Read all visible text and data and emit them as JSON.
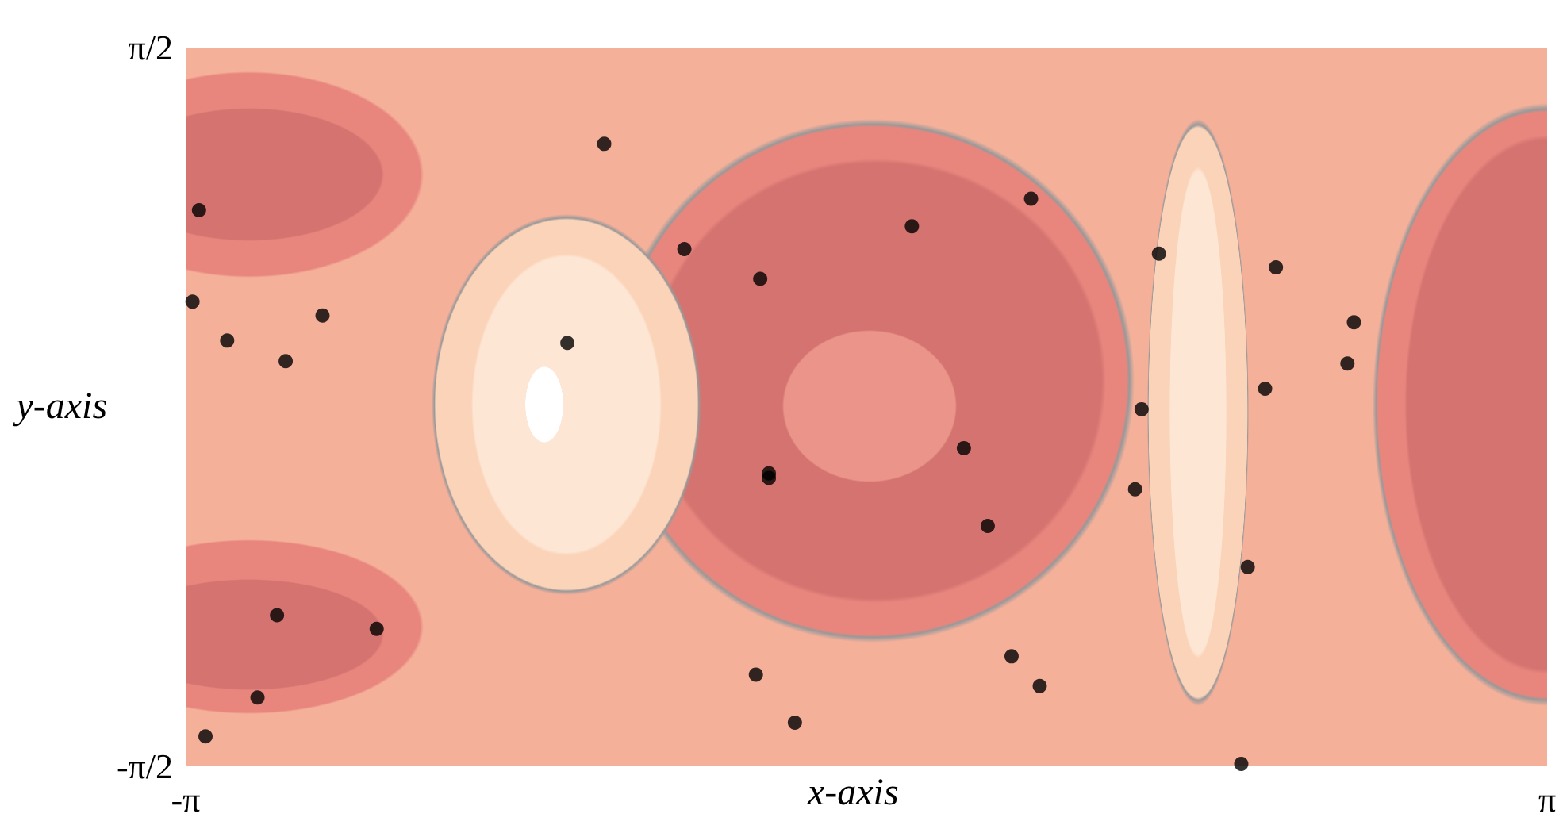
{
  "chart_data": {
    "type": "scatter",
    "xlabel": "x-axis",
    "ylabel": "y-axis",
    "xlim": [
      -3.14159,
      3.14159
    ],
    "ylim": [
      -1.5708,
      1.5708
    ],
    "xticks": [
      {
        "value": -3.14159,
        "label": "-π"
      },
      {
        "value": 3.14159,
        "label": "π"
      }
    ],
    "yticks": [
      {
        "value": -1.5708,
        "label": "-π/2"
      },
      {
        "value": 1.5708,
        "label": "π/2"
      }
    ],
    "marker": "circle",
    "grid": false,
    "series": [
      {
        "color": "#000000",
        "x": [
          -1.21,
          -3.08,
          0.76,
          0.21,
          -0.84,
          -0.49,
          1.35,
          1.89,
          -3.11,
          -2.51,
          -2.95,
          -2.68,
          -1.38,
          2.25,
          2.22,
          1.84,
          1.27,
          0.45,
          -0.45,
          -0.45,
          1.24,
          0.56,
          1.76,
          -2.72,
          -2.26,
          0.67,
          -0.51,
          0.8,
          -2.81,
          -0.33,
          -3.05,
          1.73
        ],
        "values": [
          1.15,
          0.86,
          0.91,
          0.79,
          0.69,
          0.56,
          0.67,
          0.61,
          0.46,
          0.4,
          0.29,
          0.2,
          0.28,
          0.37,
          0.19,
          0.08,
          -0.01,
          -0.18,
          -0.29,
          -0.31,
          -0.36,
          -0.52,
          -0.7,
          -0.91,
          -0.97,
          -1.09,
          -1.17,
          -1.22,
          -1.27,
          -1.38,
          -1.44,
          -1.56
        ]
      }
    ]
  }
}
